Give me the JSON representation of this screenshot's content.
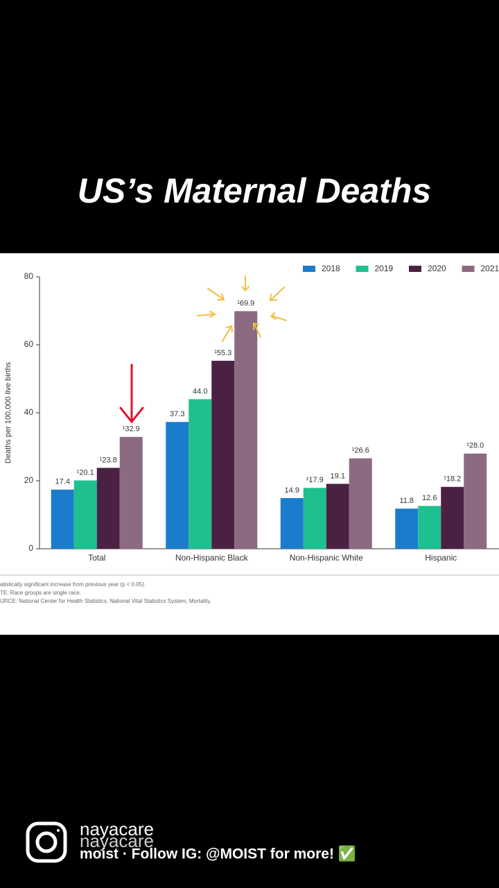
{
  "overlay_title": "US’s Maternal Deaths",
  "chart_data": {
    "type": "bar",
    "categories": [
      "Total",
      "Non-Hispanic Black",
      "Non-Hispanic White",
      "Hispanic"
    ],
    "series": [
      {
        "name": "2018",
        "color": "#1b7cce",
        "values": [
          17.4,
          37.3,
          14.9,
          11.8
        ],
        "value_labels": [
          "17.4",
          "37.3",
          "14.9",
          "11.8"
        ]
      },
      {
        "name": "2019",
        "color": "#1ec08f",
        "values": [
          20.1,
          44.0,
          17.9,
          12.6
        ],
        "value_labels": [
          "¹20.1",
          "44.0",
          "¹17.9",
          "12.6"
        ]
      },
      {
        "name": "2020",
        "color": "#4b2143",
        "values": [
          23.8,
          55.3,
          19.1,
          18.2
        ],
        "value_labels": [
          "¹23.8",
          "¹55.3",
          "19.1",
          "¹18.2"
        ]
      },
      {
        "name": "2021",
        "color": "#8c6a82",
        "values": [
          32.9,
          69.9,
          26.6,
          28.0
        ],
        "value_labels": [
          "¹32.9",
          "¹69.9",
          "¹26.6",
          "¹28.0"
        ]
      }
    ],
    "y_label": "Deaths per 100,000 live births",
    "ylim": [
      0,
      80
    ],
    "yticks": [
      0,
      20,
      40,
      60,
      80
    ],
    "notes": [
      "atistically significant increase from previous year (p < 0.05).",
      "TE: Race groups are single race.",
      "URCE: National Center for Health Statistics, National Vital Statistics System, Mortality."
    ]
  },
  "account": {
    "handle": "nayacare",
    "caption": "moist · Follow IG: @MOIST for more! ✅"
  }
}
